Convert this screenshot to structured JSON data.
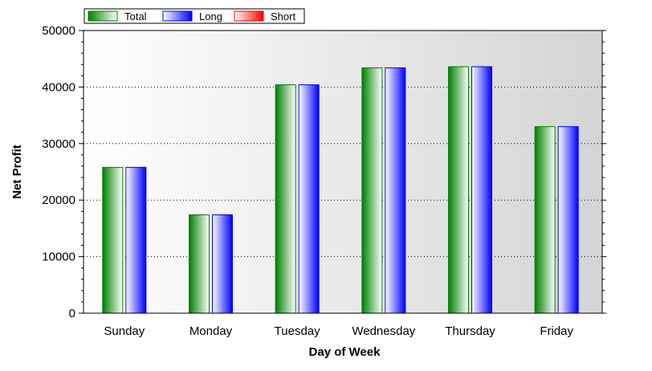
{
  "chart_data": {
    "type": "bar",
    "title": "",
    "xlabel": "Day of Week",
    "ylabel": "Net Profit",
    "categories": [
      "Sunday",
      "Monday",
      "Tuesday",
      "Wednesday",
      "Thursday",
      "Friday"
    ],
    "series": [
      {
        "name": "Total",
        "color": "#008000",
        "values": [
          25800,
          17400,
          40400,
          43400,
          43600,
          33000
        ]
      },
      {
        "name": "Long",
        "color": "#0000ff",
        "values": [
          25800,
          17400,
          40400,
          43400,
          43600,
          33000
        ]
      },
      {
        "name": "Short",
        "color": "#ff0000",
        "values": [
          0,
          0,
          0,
          0,
          0,
          0
        ]
      }
    ],
    "ylim": [
      0,
      50000
    ],
    "yticks": [
      0,
      10000,
      20000,
      30000,
      40000,
      50000
    ],
    "grid": true,
    "legend_position": "top-left"
  }
}
